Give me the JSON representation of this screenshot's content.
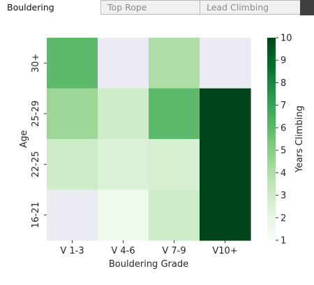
{
  "tabs": [
    {
      "label": "Bouldering",
      "active": true
    },
    {
      "label": "Top Rope",
      "active": false
    },
    {
      "label": "Lead Climbing",
      "active": false
    }
  ],
  "chart_data": {
    "type": "heatmap",
    "title": "",
    "xlabel": "Bouldering Grade",
    "ylabel": "Age",
    "x_categories": [
      "V 1-3",
      "V 4-6",
      "V 7-9",
      "V10+"
    ],
    "y_categories": [
      "30+",
      "25-29",
      "22-25",
      "16-21"
    ],
    "values": [
      [
        6,
        null,
        4,
        null
      ],
      [
        4.5,
        3,
        6,
        10
      ],
      [
        3,
        2.5,
        2.7,
        10
      ],
      [
        null,
        1.5,
        3,
        10
      ]
    ],
    "colorbar": {
      "label": "Years Climbing",
      "vmin": 1,
      "vmax": 10,
      "ticks": [
        1,
        2,
        3,
        4,
        5,
        6,
        7,
        8,
        9,
        10
      ],
      "colormap": "Greens",
      "missing_color": "#eaeaf2"
    }
  }
}
